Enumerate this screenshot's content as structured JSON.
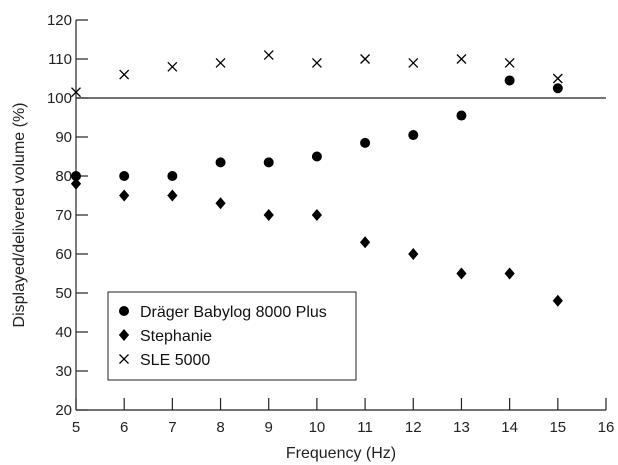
{
  "chart_data": {
    "type": "scatter",
    "xlabel": "Frequency (Hz)",
    "ylabel": "Displayed/delivered volume (%)",
    "xlim": [
      5,
      16
    ],
    "ylim": [
      20,
      120
    ],
    "xticks": [
      "5",
      "6",
      "7",
      "8",
      "9",
      "10",
      "11",
      "12",
      "13",
      "14",
      "15",
      "16"
    ],
    "yticks": [
      "20",
      "30",
      "40",
      "50",
      "60",
      "70",
      "80",
      "90",
      "100",
      "110",
      "120"
    ],
    "reference_line": {
      "y": 100
    },
    "grid": false,
    "legend": {
      "position": "bottom-left"
    },
    "series": [
      {
        "name": "Dräger Babylog 8000 Plus",
        "marker": "circle",
        "x": [
          5,
          6,
          7,
          8,
          9,
          10,
          11,
          12,
          13,
          14,
          15
        ],
        "y": [
          80,
          80,
          80,
          83.5,
          83.5,
          85,
          88.5,
          90.5,
          95.5,
          104.5,
          102.5
        ]
      },
      {
        "name": "Stephanie",
        "marker": "diamond",
        "x": [
          5,
          6,
          7,
          8,
          9,
          10,
          11,
          12,
          13,
          14,
          15
        ],
        "y": [
          78,
          75,
          75,
          73,
          70,
          70,
          63,
          60,
          55,
          55,
          48
        ]
      },
      {
        "name": "SLE 5000",
        "marker": "cross",
        "x": [
          5,
          6,
          7,
          8,
          9,
          10,
          11,
          12,
          13,
          14,
          15
        ],
        "y": [
          101.5,
          106,
          108,
          109,
          111,
          109,
          110,
          109,
          110,
          109,
          105
        ]
      }
    ]
  }
}
